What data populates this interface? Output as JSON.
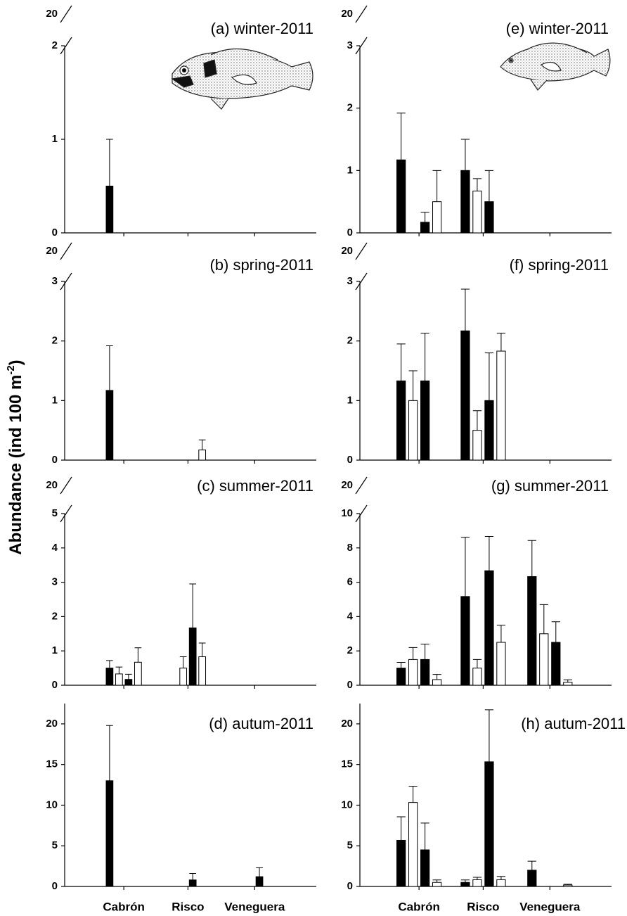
{
  "ylabel": [
    "Abundance (ind 100 m",
    "-2",
    ")"
  ],
  "chart_data": [
    {
      "type": "bar",
      "title": "(a) winter-2011",
      "categories": [
        null,
        null,
        null
      ],
      "ylim": [
        0,
        2
      ],
      "yticks": [
        0,
        1,
        2
      ],
      "break_tick": 20,
      "series": [
        {
          "color": "#000000",
          "values": [
            0.5,
            0,
            0
          ],
          "errors": [
            0.5,
            null,
            null
          ]
        },
        {
          "color": "#ffffff",
          "values": [
            0,
            0,
            0
          ],
          "errors": [
            null,
            null,
            null
          ]
        },
        {
          "color": "#000000",
          "values": [
            0,
            0,
            0
          ],
          "errors": [
            null,
            null,
            null
          ]
        },
        {
          "color": "#ffffff",
          "values": [
            0,
            0,
            0
          ],
          "errors": [
            null,
            null,
            null
          ]
        }
      ]
    },
    {
      "type": "bar",
      "title": "(b) spring-2011",
      "categories": [
        null,
        null,
        null
      ],
      "ylim": [
        0,
        3
      ],
      "yticks": [
        0,
        1,
        2,
        3
      ],
      "break_tick": 20,
      "series": [
        {
          "color": "#000000",
          "values": [
            1.17,
            0,
            0
          ],
          "errors": [
            0.75,
            null,
            null
          ]
        },
        {
          "color": "#ffffff",
          "values": [
            0,
            0,
            0
          ],
          "errors": [
            null,
            null,
            null
          ]
        },
        {
          "color": "#000000",
          "values": [
            0,
            0,
            0
          ],
          "errors": [
            null,
            null,
            null
          ]
        },
        {
          "color": "#ffffff",
          "values": [
            0,
            0.17,
            0
          ],
          "errors": [
            null,
            0.17,
            null
          ]
        }
      ]
    },
    {
      "type": "bar",
      "title": "(c) summer-2011",
      "categories": [
        null,
        null,
        null
      ],
      "ylim": [
        0,
        5
      ],
      "yticks": [
        0,
        1,
        2,
        3,
        4,
        5
      ],
      "break_tick": 20,
      "series": [
        {
          "color": "#000000",
          "values": [
            0.5,
            0,
            0
          ],
          "errors": [
            0.22,
            null,
            null
          ]
        },
        {
          "color": "#ffffff",
          "values": [
            0.33,
            0.5,
            0
          ],
          "errors": [
            0.2,
            0.33,
            null
          ]
        },
        {
          "color": "#000000",
          "values": [
            0.17,
            1.67,
            0
          ],
          "errors": [
            0.15,
            1.28,
            null
          ]
        },
        {
          "color": "#ffffff",
          "values": [
            0.67,
            0.83,
            0
          ],
          "errors": [
            0.42,
            0.4,
            null
          ]
        }
      ]
    },
    {
      "type": "bar",
      "title": "(d) autum-2011",
      "categories": [
        "Cabrón",
        "Risco",
        "Veneguera"
      ],
      "ylim": [
        0,
        22.5
      ],
      "yticks": [
        0,
        5,
        10,
        15,
        20
      ],
      "series": [
        {
          "color": "#000000",
          "values": [
            13,
            0,
            0
          ],
          "errors": [
            6.8,
            null,
            null
          ]
        },
        {
          "color": "#ffffff",
          "values": [
            0,
            0,
            0
          ],
          "errors": [
            null,
            null,
            null
          ]
        },
        {
          "color": "#000000",
          "values": [
            0,
            0.8,
            1.2
          ],
          "errors": [
            null,
            0.8,
            1.1
          ]
        },
        {
          "color": "#ffffff",
          "values": [
            0,
            0,
            0
          ],
          "errors": [
            null,
            null,
            null
          ]
        }
      ]
    },
    {
      "type": "bar",
      "title": "(e) winter-2011",
      "categories": [
        null,
        null,
        null
      ],
      "ylim": [
        0,
        3
      ],
      "yticks": [
        0,
        1,
        2,
        3
      ],
      "break_tick": 20,
      "series": [
        {
          "color": "#000000",
          "values": [
            1.17,
            1.0,
            0
          ],
          "errors": [
            0.75,
            0.5,
            null
          ]
        },
        {
          "color": "#ffffff",
          "values": [
            0,
            0.67,
            0
          ],
          "errors": [
            null,
            0.2,
            null
          ]
        },
        {
          "color": "#000000",
          "values": [
            0.17,
            0.5,
            0
          ],
          "errors": [
            0.16,
            0.5,
            null
          ]
        },
        {
          "color": "#ffffff",
          "values": [
            0.5,
            0,
            0
          ],
          "errors": [
            0.5,
            null,
            null
          ]
        }
      ]
    },
    {
      "type": "bar",
      "title": "(f) spring-2011",
      "categories": [
        null,
        null,
        null
      ],
      "ylim": [
        0,
        3
      ],
      "yticks": [
        0,
        1,
        2,
        3
      ],
      "break_tick": 20,
      "series": [
        {
          "color": "#000000",
          "values": [
            1.33,
            2.17,
            0
          ],
          "errors": [
            0.62,
            0.7,
            null
          ]
        },
        {
          "color": "#ffffff",
          "values": [
            1.0,
            0.5,
            0
          ],
          "errors": [
            0.5,
            0.33,
            null
          ]
        },
        {
          "color": "#000000",
          "values": [
            1.33,
            1.0,
            0
          ],
          "errors": [
            0.8,
            0.8,
            null
          ]
        },
        {
          "color": "#ffffff",
          "values": [
            0,
            1.83,
            0
          ],
          "errors": [
            null,
            0.3,
            null
          ]
        }
      ]
    },
    {
      "type": "bar",
      "title": "(g) summer-2011",
      "categories": [
        null,
        null,
        null
      ],
      "ylim": [
        0,
        10
      ],
      "yticks": [
        0,
        2,
        4,
        6,
        8,
        10
      ],
      "break_tick": 20,
      "series": [
        {
          "color": "#000000",
          "values": [
            1.0,
            5.17,
            6.33
          ],
          "errors": [
            0.33,
            3.45,
            2.1
          ]
        },
        {
          "color": "#ffffff",
          "values": [
            1.5,
            1.0,
            3.0
          ],
          "errors": [
            0.7,
            0.5,
            1.7
          ]
        },
        {
          "color": "#000000",
          "values": [
            1.5,
            6.67,
            2.5
          ],
          "errors": [
            0.9,
            2.0,
            1.2
          ]
        },
        {
          "color": "#ffffff",
          "values": [
            0.33,
            2.5,
            0.17
          ],
          "errors": [
            0.3,
            1.0,
            0.15
          ]
        }
      ]
    },
    {
      "type": "bar",
      "title": "(h) autum-2011",
      "categories": [
        "Cabrón",
        "Risco",
        "Veneguera"
      ],
      "ylim": [
        0,
        22.5
      ],
      "yticks": [
        0,
        5,
        10,
        15,
        20
      ],
      "series": [
        {
          "color": "#000000",
          "values": [
            5.67,
            0.5,
            2.0
          ],
          "errors": [
            2.9,
            0.3,
            1.1
          ]
        },
        {
          "color": "#ffffff",
          "values": [
            10.33,
            0.83,
            0
          ],
          "errors": [
            2.0,
            0.3,
            null
          ]
        },
        {
          "color": "#000000",
          "values": [
            4.5,
            15.33,
            0
          ],
          "errors": [
            3.3,
            6.4,
            null
          ]
        },
        {
          "color": "#ffffff",
          "values": [
            0.5,
            0.83,
            0.17
          ],
          "errors": [
            0.3,
            0.4,
            0.1
          ]
        }
      ]
    }
  ]
}
